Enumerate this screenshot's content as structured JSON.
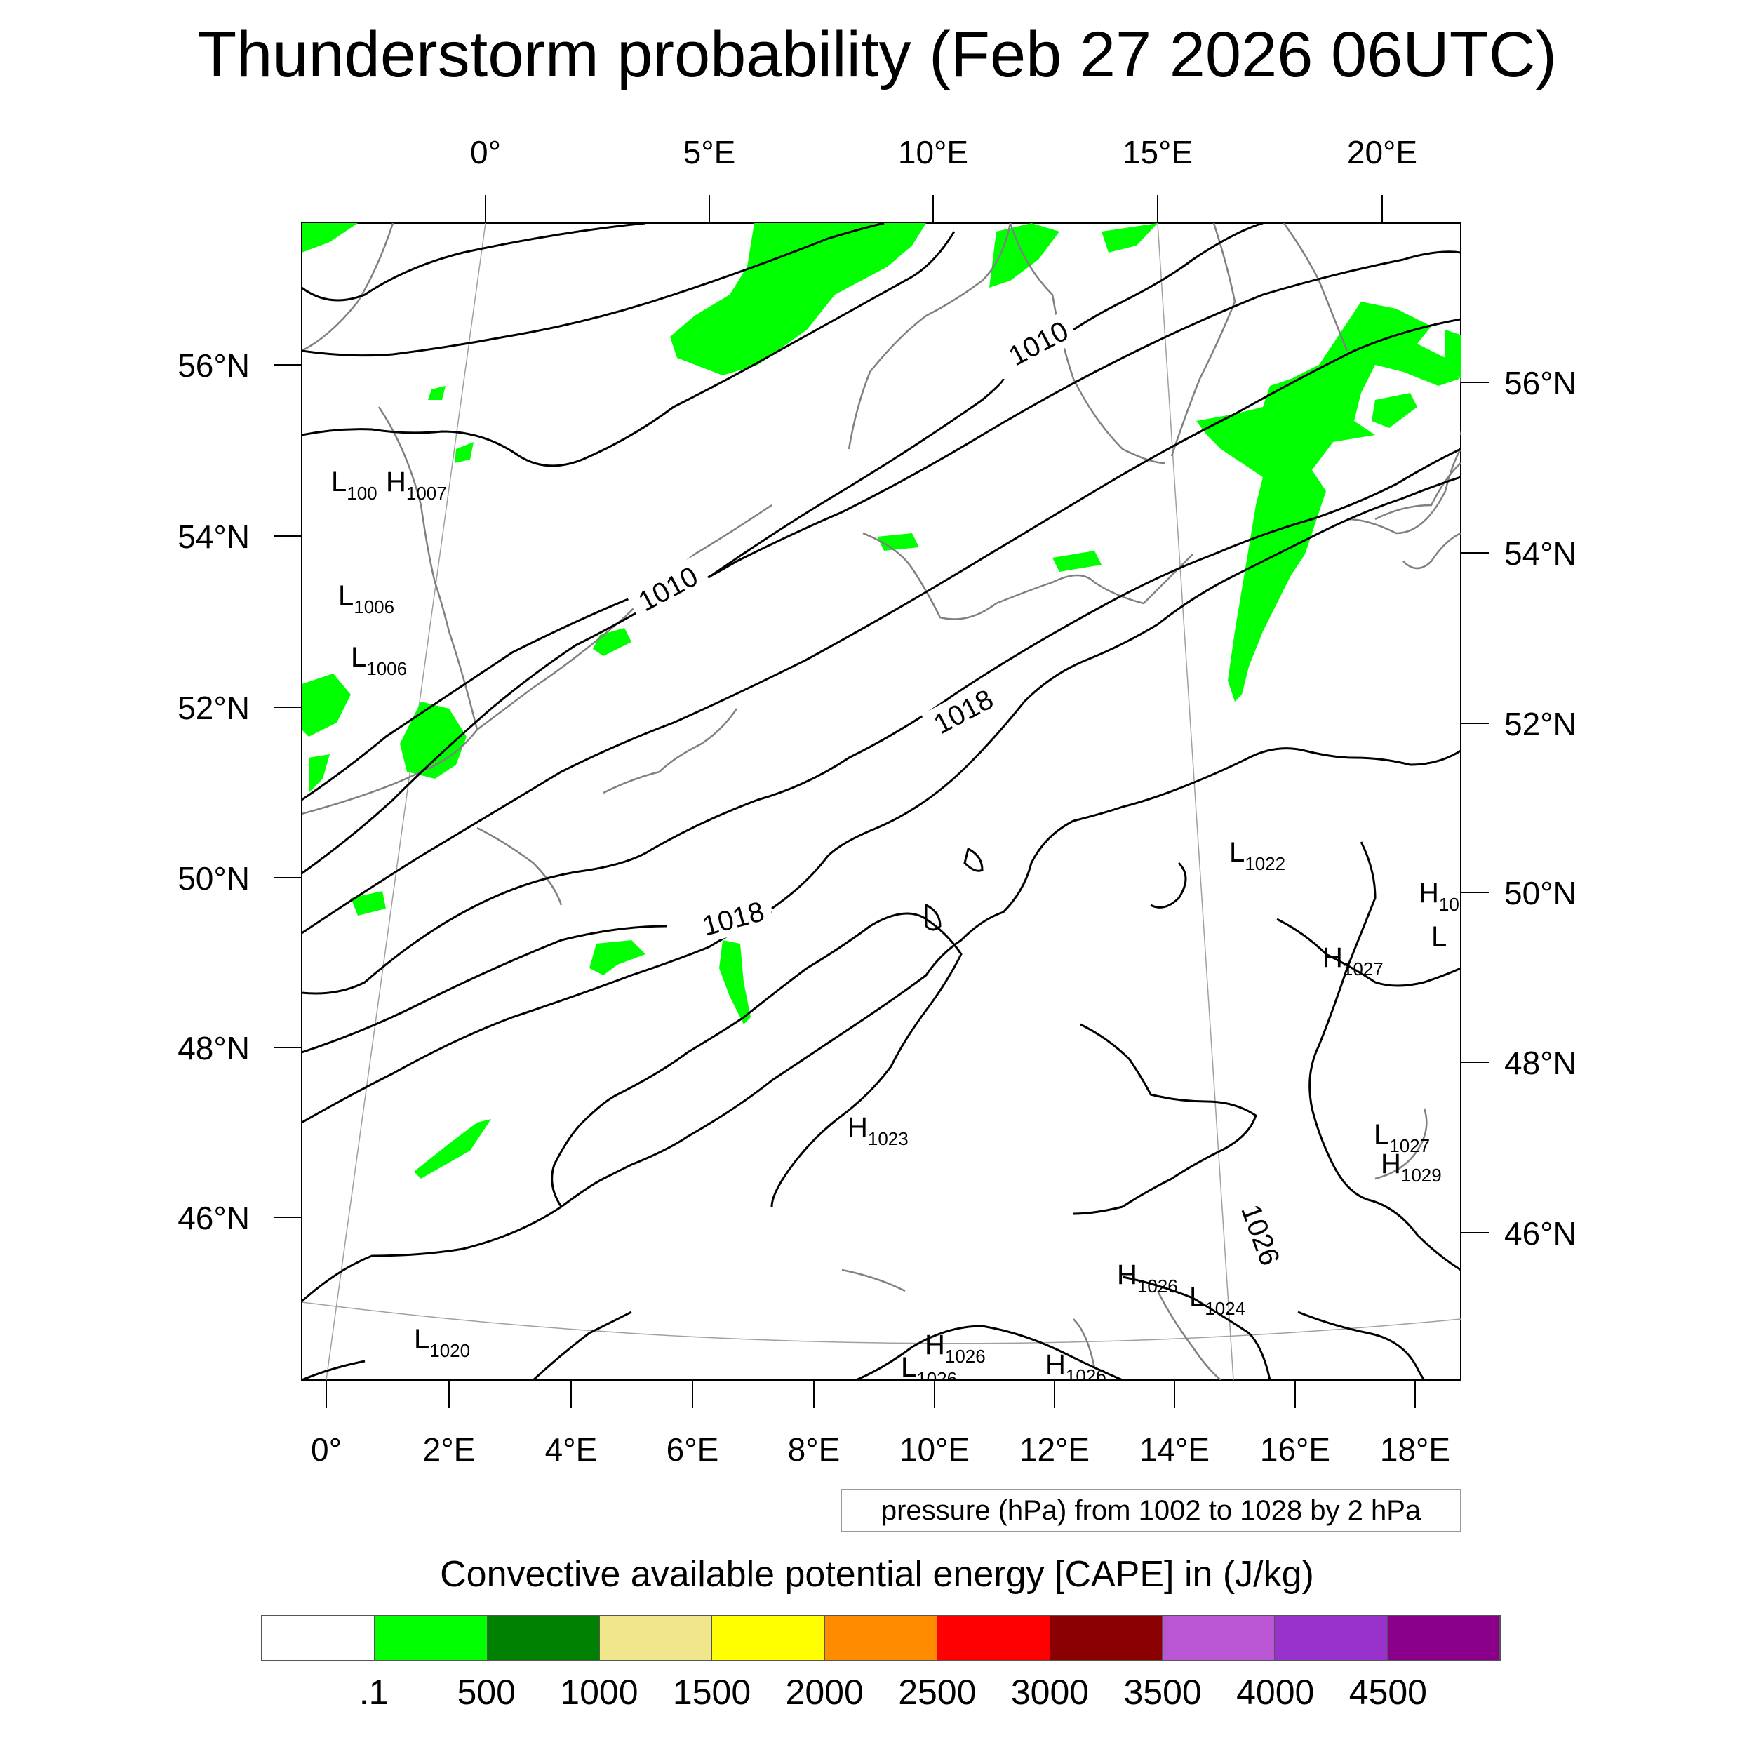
{
  "title": "Thunderstorm probability (Feb 27 2026 06UTC)",
  "map": {
    "top_axis_labels": [
      "0°",
      "5°E",
      "10°E",
      "15°E",
      "20°E"
    ],
    "bottom_axis_labels": [
      "0°",
      "2°E",
      "4°E",
      "6°E",
      "8°E",
      "10°E",
      "12°E",
      "14°E",
      "16°E",
      "18°E"
    ],
    "left_axis_labels": [
      "56°N",
      "54°N",
      "52°N",
      "50°N",
      "48°N",
      "46°N"
    ],
    "right_axis_labels": [
      "56°N",
      "54°N",
      "52°N",
      "50°N",
      "48°N",
      "46°N"
    ],
    "isobar_labels": [
      "1010",
      "1010",
      "1018",
      "1018",
      "1026"
    ],
    "pressure_centers": [
      {
        "letter": "L",
        "value": "100"
      },
      {
        "letter": "H",
        "value": "1007"
      },
      {
        "letter": "L",
        "value": "1006"
      },
      {
        "letter": "L",
        "value": "1006"
      },
      {
        "letter": "L",
        "value": "1022"
      },
      {
        "letter": "H",
        "value": "10"
      },
      {
        "letter": "L",
        "value": ""
      },
      {
        "letter": "H",
        "value": "1027"
      },
      {
        "letter": "H",
        "value": "1023"
      },
      {
        "letter": "L",
        "value": "1027"
      },
      {
        "letter": "H",
        "value": "1029"
      },
      {
        "letter": "H",
        "value": "1026"
      },
      {
        "letter": "L",
        "value": "1024"
      },
      {
        "letter": "L",
        "value": "1020"
      },
      {
        "letter": "H",
        "value": "1026"
      },
      {
        "letter": "L",
        "value": "1026"
      },
      {
        "letter": "H",
        "value": "1026"
      }
    ],
    "colors": {
      "cape_low": "#00ff00",
      "isobar": "#000000",
      "coastline": "#808080",
      "graticule": "#a0a0a0"
    }
  },
  "pressure_note": "pressure (hPa) from 1002 to 1028 by 2 hPa",
  "colorbar": {
    "title": "Convective available potential energy [CAPE] in (J/kg)",
    "colors": [
      "#ffffff",
      "#00ff00",
      "#008000",
      "#f0e68c",
      "#ffff00",
      "#ff8c00",
      "#ff0000",
      "#8b0000",
      "#ba55d3",
      "#9932cc",
      "#8b008b"
    ],
    "tick_labels": [
      ".1",
      "500",
      "1000",
      "1500",
      "2000",
      "2500",
      "3000",
      "3500",
      "4000",
      "4500"
    ]
  }
}
